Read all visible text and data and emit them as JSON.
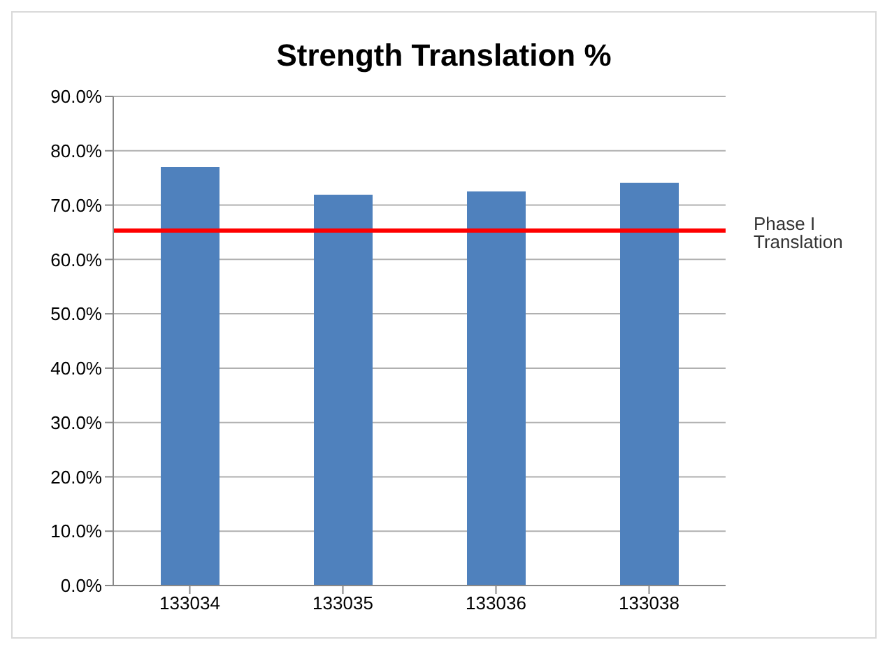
{
  "chart_data": {
    "type": "bar",
    "title": "Strength Translation %",
    "categories": [
      "133034",
      "133035",
      "133036",
      "133038"
    ],
    "values": [
      77.0,
      71.9,
      72.5,
      74.1
    ],
    "color": "#4f81bd",
    "ylim": [
      0,
      90
    ],
    "yticks": [
      {
        "value": 0,
        "label": "0.0%"
      },
      {
        "value": 10,
        "label": "10.0%"
      },
      {
        "value": 20,
        "label": "20.0%"
      },
      {
        "value": 30,
        "label": "30.0%"
      },
      {
        "value": 40,
        "label": "40.0%"
      },
      {
        "value": 50,
        "label": "50.0%"
      },
      {
        "value": 60,
        "label": "60.0%"
      },
      {
        "value": 70,
        "label": "70.0%"
      },
      {
        "value": 80,
        "label": "80.0%"
      },
      {
        "value": 90,
        "label": "90.0%"
      }
    ],
    "grid": "y",
    "ref_lines": [
      {
        "axis": "y",
        "value": 65.3,
        "label": "Phase I Translation",
        "color": "#ff0000"
      }
    ]
  }
}
